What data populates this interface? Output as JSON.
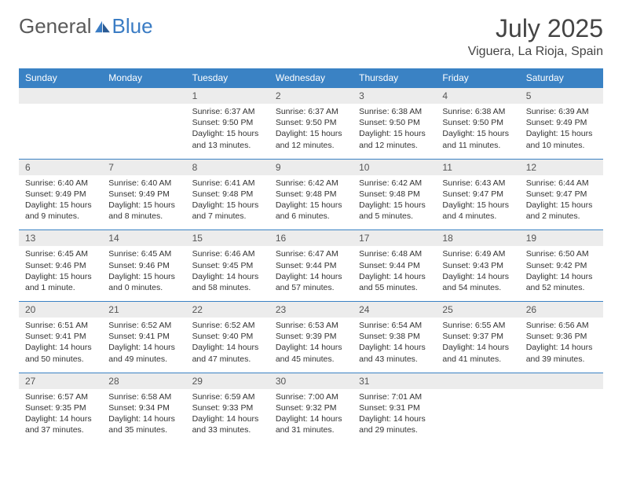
{
  "brand": {
    "part1": "General",
    "part2": "Blue"
  },
  "title": "July 2025",
  "location": "Viguera, La Rioja, Spain",
  "colors": {
    "header_bg": "#3a82c4",
    "header_text": "#ffffff",
    "daynum_bg": "#ececec",
    "daynum_text": "#555555",
    "body_text": "#333333",
    "brand_gray": "#5a5a5a",
    "brand_blue": "#3a7cc4",
    "rule": "#3a82c4"
  },
  "weekdays": [
    "Sunday",
    "Monday",
    "Tuesday",
    "Wednesday",
    "Thursday",
    "Friday",
    "Saturday"
  ],
  "weeks": [
    [
      null,
      null,
      {
        "n": "1",
        "sr": "6:37 AM",
        "ss": "9:50 PM",
        "dl": "15 hours and 13 minutes."
      },
      {
        "n": "2",
        "sr": "6:37 AM",
        "ss": "9:50 PM",
        "dl": "15 hours and 12 minutes."
      },
      {
        "n": "3",
        "sr": "6:38 AM",
        "ss": "9:50 PM",
        "dl": "15 hours and 12 minutes."
      },
      {
        "n": "4",
        "sr": "6:38 AM",
        "ss": "9:50 PM",
        "dl": "15 hours and 11 minutes."
      },
      {
        "n": "5",
        "sr": "6:39 AM",
        "ss": "9:49 PM",
        "dl": "15 hours and 10 minutes."
      }
    ],
    [
      {
        "n": "6",
        "sr": "6:40 AM",
        "ss": "9:49 PM",
        "dl": "15 hours and 9 minutes."
      },
      {
        "n": "7",
        "sr": "6:40 AM",
        "ss": "9:49 PM",
        "dl": "15 hours and 8 minutes."
      },
      {
        "n": "8",
        "sr": "6:41 AM",
        "ss": "9:48 PM",
        "dl": "15 hours and 7 minutes."
      },
      {
        "n": "9",
        "sr": "6:42 AM",
        "ss": "9:48 PM",
        "dl": "15 hours and 6 minutes."
      },
      {
        "n": "10",
        "sr": "6:42 AM",
        "ss": "9:48 PM",
        "dl": "15 hours and 5 minutes."
      },
      {
        "n": "11",
        "sr": "6:43 AM",
        "ss": "9:47 PM",
        "dl": "15 hours and 4 minutes."
      },
      {
        "n": "12",
        "sr": "6:44 AM",
        "ss": "9:47 PM",
        "dl": "15 hours and 2 minutes."
      }
    ],
    [
      {
        "n": "13",
        "sr": "6:45 AM",
        "ss": "9:46 PM",
        "dl": "15 hours and 1 minute."
      },
      {
        "n": "14",
        "sr": "6:45 AM",
        "ss": "9:46 PM",
        "dl": "15 hours and 0 minutes."
      },
      {
        "n": "15",
        "sr": "6:46 AM",
        "ss": "9:45 PM",
        "dl": "14 hours and 58 minutes."
      },
      {
        "n": "16",
        "sr": "6:47 AM",
        "ss": "9:44 PM",
        "dl": "14 hours and 57 minutes."
      },
      {
        "n": "17",
        "sr": "6:48 AM",
        "ss": "9:44 PM",
        "dl": "14 hours and 55 minutes."
      },
      {
        "n": "18",
        "sr": "6:49 AM",
        "ss": "9:43 PM",
        "dl": "14 hours and 54 minutes."
      },
      {
        "n": "19",
        "sr": "6:50 AM",
        "ss": "9:42 PM",
        "dl": "14 hours and 52 minutes."
      }
    ],
    [
      {
        "n": "20",
        "sr": "6:51 AM",
        "ss": "9:41 PM",
        "dl": "14 hours and 50 minutes."
      },
      {
        "n": "21",
        "sr": "6:52 AM",
        "ss": "9:41 PM",
        "dl": "14 hours and 49 minutes."
      },
      {
        "n": "22",
        "sr": "6:52 AM",
        "ss": "9:40 PM",
        "dl": "14 hours and 47 minutes."
      },
      {
        "n": "23",
        "sr": "6:53 AM",
        "ss": "9:39 PM",
        "dl": "14 hours and 45 minutes."
      },
      {
        "n": "24",
        "sr": "6:54 AM",
        "ss": "9:38 PM",
        "dl": "14 hours and 43 minutes."
      },
      {
        "n": "25",
        "sr": "6:55 AM",
        "ss": "9:37 PM",
        "dl": "14 hours and 41 minutes."
      },
      {
        "n": "26",
        "sr": "6:56 AM",
        "ss": "9:36 PM",
        "dl": "14 hours and 39 minutes."
      }
    ],
    [
      {
        "n": "27",
        "sr": "6:57 AM",
        "ss": "9:35 PM",
        "dl": "14 hours and 37 minutes."
      },
      {
        "n": "28",
        "sr": "6:58 AM",
        "ss": "9:34 PM",
        "dl": "14 hours and 35 minutes."
      },
      {
        "n": "29",
        "sr": "6:59 AM",
        "ss": "9:33 PM",
        "dl": "14 hours and 33 minutes."
      },
      {
        "n": "30",
        "sr": "7:00 AM",
        "ss": "9:32 PM",
        "dl": "14 hours and 31 minutes."
      },
      {
        "n": "31",
        "sr": "7:01 AM",
        "ss": "9:31 PM",
        "dl": "14 hours and 29 minutes."
      },
      null,
      null
    ]
  ],
  "labels": {
    "sunrise": "Sunrise:",
    "sunset": "Sunset:",
    "daylight": "Daylight:"
  }
}
